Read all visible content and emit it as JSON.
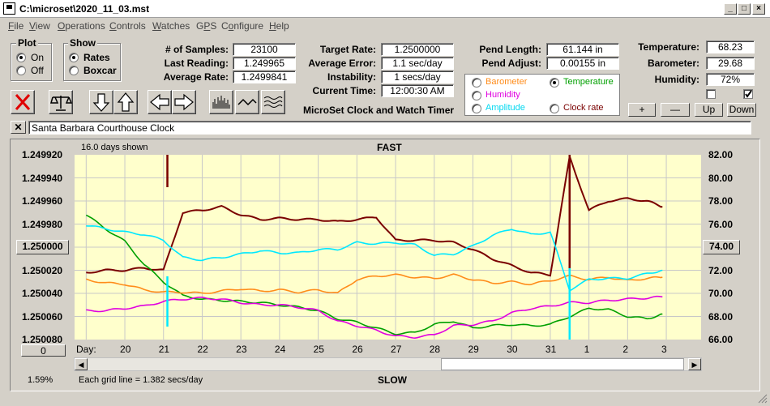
{
  "window": {
    "title": "C:\\microset\\2020_11_03.mst"
  },
  "menu": [
    "File",
    "View",
    "Operations",
    "Controls",
    "Watches",
    "GPS",
    "Configure",
    "Help"
  ],
  "menu_ul": [
    "F",
    "V",
    "O",
    "C",
    "W",
    "P",
    "o",
    "H"
  ],
  "menu_rest": [
    "ile",
    "iew",
    "perations",
    "ontrols",
    "atches",
    "",
    "nfigure",
    "elp"
  ],
  "plot_group": {
    "title": "Plot",
    "on": "On",
    "off": "Off",
    "selected": "On"
  },
  "show_group": {
    "title": "Show",
    "rates": "Rates",
    "boxcar": "Boxcar",
    "selected": "Rates"
  },
  "stats": {
    "samples_label": "# of Samples:",
    "samples": "23100",
    "last_label": "Last Reading:",
    "last": "1.249965",
    "avg_label": "Average Rate:",
    "avg": "1.2499841",
    "target_label": "Target Rate:",
    "target": "1.2500000",
    "avgerr_label": "Average Error:",
    "avgerr": "1.1 sec/day",
    "instab_label": "Instability:",
    "instab": "1 secs/day",
    "time_label": "Current Time:",
    "time": "12:00:30 AM",
    "pendlen_label": "Pend Length:",
    "pendlen": "61.144 in",
    "pendadj_label": "Pend Adjust:",
    "pendadj": "0.00155 in",
    "temp_label": "Temperature:",
    "temp": "68.23",
    "baro_label": "Barometer:",
    "baro": "29.68",
    "hum_label": "Humidity:",
    "hum": "72%"
  },
  "app_title": "MicroSet Clock and Watch Timer",
  "sensors": {
    "barometer": "Barometer",
    "temperature": "Temperature",
    "humidity": "Humidity",
    "amplitude": "Amplitude",
    "clockrate": "Clock rate",
    "selected": "Temperature"
  },
  "colors": {
    "barometer": "#ff8c1a",
    "temperature": "#00a000",
    "humidity": "#e000e0",
    "amplitude": "#00e8ff",
    "clockrate": "#7a0000",
    "plot_bg": "#ffffcc"
  },
  "adjust_buttons": [
    "+",
    "—",
    "Up",
    "Down"
  ],
  "checkbox": {
    "left": false,
    "right": true
  },
  "clock_name": "Santa Barbara Courthouse Clock",
  "chart_header": {
    "days_shown": "16.0 days shown",
    "fast": "FAST",
    "slow": "SLOW",
    "grid": "Each grid line = 1.382 secs/day",
    "day_label": "Day:",
    "percent": "1.59%"
  },
  "left_axis": [
    "1.249920",
    "1.249940",
    "1.249960",
    "1.249980",
    "1.250000",
    "1.250020",
    "1.250040",
    "1.250060",
    "1.250080"
  ],
  "right_axis": [
    "82.00",
    "80.00",
    "78.00",
    "76.00",
    "74.00",
    "72.00",
    "70.00",
    "68.00",
    "66.00"
  ],
  "left_button": "1.250000",
  "right_button": "74.00",
  "zero_button": "0",
  "days": [
    "20",
    "21",
    "22",
    "23",
    "24",
    "25",
    "26",
    "27",
    "28",
    "29",
    "30",
    "31",
    "1",
    "2",
    "3"
  ],
  "chart_data": {
    "type": "line",
    "x_unit": "day",
    "x": [
      19.5,
      20,
      20.5,
      21,
      21.5,
      22,
      22.5,
      23,
      23.5,
      24,
      24.5,
      25,
      25.5,
      26,
      26.5,
      27,
      27.5,
      28,
      28.5,
      29,
      29.5,
      30,
      30.5,
      31,
      31.5,
      32,
      32.5,
      33,
      33.5,
      34,
      34.4
    ],
    "ylim_rate": [
      1.24992,
      1.25008
    ],
    "ylim_temp": [
      66,
      82
    ],
    "series": [
      {
        "name": "Clock rate",
        "axis": "rate",
        "values": [
          1.250022,
          1.25002,
          1.25002,
          1.250018,
          1.25002,
          1.24997,
          1.249968,
          1.249965,
          1.249972,
          1.249976,
          1.249975,
          1.249976,
          1.249976,
          1.249978,
          1.249976,
          1.249974,
          1.249994,
          1.249994,
          1.249994,
          1.249996,
          1.250002,
          1.25001,
          1.250016,
          1.250022,
          1.250024,
          1.249922,
          1.249968,
          1.24996,
          1.249958,
          1.24996,
          1.249965
        ]
      },
      {
        "name": "Temperature",
        "axis": "temp",
        "values": [
          76.8,
          75.6,
          74.5,
          72.5,
          71.0,
          69.8,
          69.5,
          69.4,
          69.3,
          69.2,
          69.0,
          68.8,
          68.5,
          67.8,
          67.5,
          67.0,
          66.5,
          66.6,
          67.3,
          67.6,
          67.0,
          67.2,
          67.3,
          67.2,
          67.3,
          68.0,
          68.7,
          68.6,
          68.0,
          67.8,
          68.2
        ]
      },
      {
        "name": "Barometer",
        "axis": "temp",
        "values": [
          71.2,
          70.9,
          70.8,
          70.3,
          70.1,
          70.1,
          70.0,
          70.2,
          70.4,
          70.2,
          70.3,
          70.1,
          70.3,
          70.0,
          71.2,
          71.5,
          71.6,
          71.4,
          71.3,
          71.6,
          71.2,
          70.9,
          71.0,
          70.8,
          71.1,
          71.5,
          71.2,
          71.4,
          71.1,
          71.3,
          71.4
        ]
      },
      {
        "name": "Amplitude",
        "axis": "temp",
        "values": [
          75.9,
          75.6,
          75.3,
          75.1,
          74.6,
          73.1,
          72.9,
          73.1,
          73.4,
          73.7,
          73.5,
          73.5,
          73.8,
          73.8,
          74.4,
          74.3,
          74.4,
          74.2,
          73.3,
          73.4,
          74.1,
          75.0,
          75.6,
          75.1,
          75.3,
          70.3,
          71.2,
          71.3,
          71.3,
          71.7,
          72.0
        ]
      },
      {
        "name": "Humidity",
        "axis": "temp",
        "values": [
          68.5,
          68.5,
          68.7,
          68.9,
          69.3,
          69.5,
          69.6,
          69.5,
          69.2,
          69.0,
          69.0,
          68.8,
          68.5,
          67.6,
          67.2,
          66.8,
          66.3,
          66.2,
          66.4,
          67.2,
          67.3,
          67.6,
          68.3,
          68.7,
          68.9,
          69.2,
          69.2,
          69.4,
          69.5,
          69.6,
          69.7
        ]
      }
    ]
  }
}
